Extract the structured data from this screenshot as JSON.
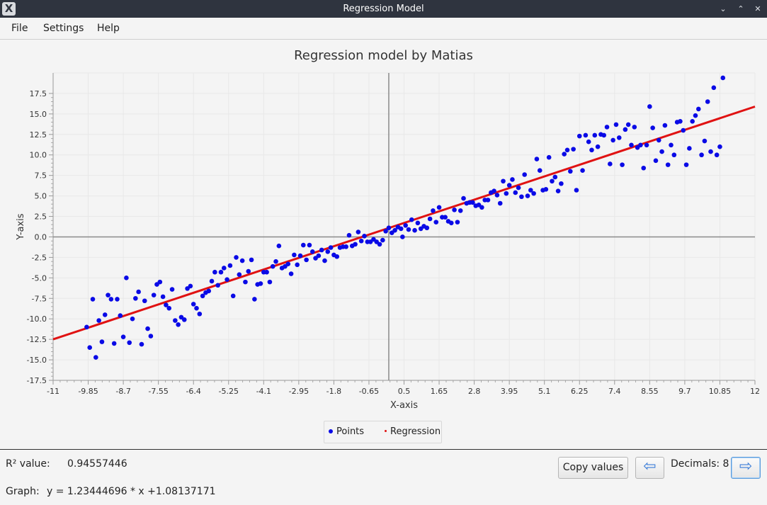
{
  "window": {
    "title": "Regression Model",
    "icon": "x-app-icon",
    "controls": [
      "chevron-down-icon",
      "chevron-up-icon",
      "close-icon"
    ]
  },
  "menu": {
    "items": [
      "File",
      "Settings",
      "Help"
    ]
  },
  "legend": {
    "points": "Points",
    "regression": "Regression"
  },
  "footer": {
    "r2_label": "R² value:",
    "r2_value": "0.94557446",
    "graph_label": "Graph:",
    "graph_equation": "y = 1.23444696 * x +1.08137171",
    "copy_button": "Copy values",
    "decimals_label": "Decimals: 8",
    "prev_icon": "arrow-left-icon",
    "next_icon": "arrow-right-icon"
  },
  "colors": {
    "titlebar": "#2f343f",
    "points": "#0a0ae6",
    "regression": "#e01212",
    "axis": "#8a8a8a",
    "grid": "#e8e8e8"
  },
  "chart_data": {
    "type": "scatter",
    "title": "Regression model by Matias",
    "xlabel": "X-axis",
    "ylabel": "Y-axis",
    "xlim": [
      -11,
      12
    ],
    "ylim": [
      -17.5,
      20
    ],
    "x_ticks": [
      "-11",
      "-9.85",
      "-8.7",
      "-7.55",
      "-6.4",
      "-5.25",
      "-4.1",
      "-2.95",
      "-1.8",
      "-0.65",
      "0.5",
      "1.65",
      "2.8",
      "3.95",
      "5.1",
      "6.25",
      "7.4",
      "8.55",
      "9.7",
      "10.85",
      "12"
    ],
    "y_ticks": [
      "-17.5",
      "-15.0",
      "-12.5",
      "-10.0",
      "-7.5",
      "-5.0",
      "-2.5",
      "0.0",
      "2.5",
      "5.0",
      "7.5",
      "10.0",
      "12.5",
      "15.0",
      "17.5"
    ],
    "grid": true,
    "legend_placement": "bottom-center",
    "series": [
      {
        "name": "Points",
        "points": [
          [
            -9.9,
            -11.0
          ],
          [
            -9.8,
            -13.5
          ],
          [
            -9.7,
            -7.6
          ],
          [
            -9.6,
            -14.7
          ],
          [
            -9.5,
            -10.2
          ],
          [
            -9.4,
            -12.8
          ],
          [
            -9.3,
            -9.5
          ],
          [
            -9.2,
            -7.1
          ],
          [
            -9.1,
            -7.6
          ],
          [
            -9.0,
            -13.0
          ],
          [
            -8.9,
            -7.6
          ],
          [
            -8.8,
            -9.6
          ],
          [
            -8.7,
            -12.2
          ],
          [
            -8.6,
            -5.0
          ],
          [
            -8.5,
            -12.9
          ],
          [
            -8.4,
            -10.0
          ],
          [
            -8.3,
            -7.5
          ],
          [
            -8.2,
            -6.7
          ],
          [
            -8.1,
            -13.1
          ],
          [
            -8.0,
            -7.8
          ],
          [
            -7.9,
            -11.2
          ],
          [
            -7.8,
            -12.1
          ],
          [
            -7.7,
            -7.1
          ],
          [
            -7.6,
            -5.8
          ],
          [
            -7.5,
            -5.5
          ],
          [
            -7.4,
            -7.3
          ],
          [
            -7.3,
            -8.3
          ],
          [
            -7.2,
            -8.7
          ],
          [
            -7.1,
            -6.4
          ],
          [
            -7.0,
            -10.2
          ],
          [
            -6.9,
            -10.7
          ],
          [
            -6.8,
            -9.8
          ],
          [
            -6.7,
            -10.1
          ],
          [
            -6.6,
            -6.3
          ],
          [
            -6.5,
            -6.0
          ],
          [
            -6.4,
            -8.2
          ],
          [
            -6.3,
            -8.7
          ],
          [
            -6.2,
            -9.4
          ],
          [
            -6.1,
            -7.2
          ],
          [
            -6.0,
            -6.8
          ],
          [
            -5.9,
            -6.6
          ],
          [
            -5.8,
            -5.4
          ],
          [
            -5.7,
            -4.3
          ],
          [
            -5.6,
            -5.9
          ],
          [
            -5.5,
            -4.3
          ],
          [
            -5.4,
            -3.8
          ],
          [
            -5.3,
            -5.2
          ],
          [
            -5.2,
            -3.5
          ],
          [
            -5.1,
            -7.2
          ],
          [
            -5.0,
            -2.5
          ],
          [
            -4.9,
            -4.6
          ],
          [
            -4.8,
            -2.9
          ],
          [
            -4.7,
            -5.5
          ],
          [
            -4.6,
            -4.2
          ],
          [
            -4.5,
            -2.8
          ],
          [
            -4.4,
            -7.6
          ],
          [
            -4.3,
            -5.8
          ],
          [
            -4.2,
            -5.7
          ],
          [
            -4.1,
            -4.3
          ],
          [
            -4.0,
            -4.3
          ],
          [
            -3.9,
            -5.5
          ],
          [
            -3.8,
            -3.6
          ],
          [
            -3.7,
            -3.0
          ],
          [
            -3.6,
            -1.1
          ],
          [
            -3.5,
            -3.8
          ],
          [
            -3.4,
            -3.6
          ],
          [
            -3.3,
            -3.3
          ],
          [
            -3.2,
            -4.5
          ],
          [
            -3.1,
            -2.2
          ],
          [
            -3.0,
            -3.4
          ],
          [
            -2.9,
            -2.3
          ],
          [
            -2.8,
            -1.0
          ],
          [
            -2.7,
            -2.8
          ],
          [
            -2.6,
            -1.0
          ],
          [
            -2.5,
            -1.8
          ],
          [
            -2.4,
            -2.6
          ],
          [
            -2.3,
            -2.3
          ],
          [
            -2.2,
            -1.6
          ],
          [
            -2.1,
            -2.9
          ],
          [
            -2.0,
            -1.8
          ],
          [
            -1.9,
            -1.3
          ],
          [
            -1.8,
            -2.2
          ],
          [
            -1.7,
            -2.4
          ],
          [
            -1.6,
            -1.3
          ],
          [
            -1.5,
            -1.2
          ],
          [
            -1.4,
            -1.2
          ],
          [
            -1.3,
            0.2
          ],
          [
            -1.2,
            -1.1
          ],
          [
            -1.1,
            -0.9
          ],
          [
            -1.0,
            0.6
          ],
          [
            -0.9,
            -0.5
          ],
          [
            -0.8,
            0.1
          ],
          [
            -0.7,
            -0.6
          ],
          [
            -0.6,
            -0.6
          ],
          [
            -0.5,
            -0.3
          ],
          [
            -0.4,
            -0.6
          ],
          [
            -0.3,
            -0.9
          ],
          [
            -0.2,
            -0.4
          ],
          [
            -0.1,
            0.7
          ],
          [
            0.0,
            1.1
          ],
          [
            0.1,
            0.5
          ],
          [
            0.2,
            0.8
          ],
          [
            0.3,
            1.2
          ],
          [
            0.4,
            1.0
          ],
          [
            0.45,
            0.0
          ],
          [
            0.55,
            1.4
          ],
          [
            0.65,
            0.9
          ],
          [
            0.75,
            2.1
          ],
          [
            0.85,
            0.8
          ],
          [
            0.95,
            1.7
          ],
          [
            1.05,
            1.0
          ],
          [
            1.15,
            1.3
          ],
          [
            1.25,
            1.1
          ],
          [
            1.35,
            2.2
          ],
          [
            1.45,
            3.2
          ],
          [
            1.55,
            1.8
          ],
          [
            1.65,
            3.6
          ],
          [
            1.75,
            2.4
          ],
          [
            1.85,
            2.4
          ],
          [
            1.95,
            1.9
          ],
          [
            2.05,
            1.7
          ],
          [
            2.15,
            3.3
          ],
          [
            2.25,
            1.8
          ],
          [
            2.35,
            3.2
          ],
          [
            2.45,
            4.7
          ],
          [
            2.55,
            4.1
          ],
          [
            2.65,
            4.2
          ],
          [
            2.75,
            4.2
          ],
          [
            2.85,
            3.8
          ],
          [
            2.95,
            3.9
          ],
          [
            3.05,
            3.6
          ],
          [
            3.15,
            4.5
          ],
          [
            3.25,
            4.5
          ],
          [
            3.35,
            5.4
          ],
          [
            3.45,
            5.6
          ],
          [
            3.55,
            5.1
          ],
          [
            3.65,
            4.1
          ],
          [
            3.75,
            6.8
          ],
          [
            3.85,
            5.3
          ],
          [
            3.95,
            6.3
          ],
          [
            4.05,
            7.0
          ],
          [
            4.15,
            5.4
          ],
          [
            4.25,
            6.0
          ],
          [
            4.35,
            4.9
          ],
          [
            4.45,
            7.6
          ],
          [
            4.55,
            5.0
          ],
          [
            4.65,
            5.7
          ],
          [
            4.75,
            5.3
          ],
          [
            4.85,
            9.5
          ],
          [
            4.95,
            8.1
          ],
          [
            5.05,
            5.7
          ],
          [
            5.15,
            5.8
          ],
          [
            5.25,
            9.7
          ],
          [
            5.35,
            6.8
          ],
          [
            5.45,
            7.3
          ],
          [
            5.55,
            5.6
          ],
          [
            5.65,
            6.5
          ],
          [
            5.75,
            10.1
          ],
          [
            5.85,
            10.6
          ],
          [
            5.95,
            8.0
          ],
          [
            6.05,
            10.7
          ],
          [
            6.15,
            5.7
          ],
          [
            6.25,
            12.3
          ],
          [
            6.35,
            8.1
          ],
          [
            6.45,
            12.4
          ],
          [
            6.55,
            11.6
          ],
          [
            6.65,
            10.6
          ],
          [
            6.75,
            12.4
          ],
          [
            6.85,
            11.0
          ],
          [
            6.95,
            12.5
          ],
          [
            7.05,
            12.4
          ],
          [
            7.15,
            13.4
          ],
          [
            7.25,
            8.9
          ],
          [
            7.35,
            11.8
          ],
          [
            7.45,
            13.7
          ],
          [
            7.55,
            12.1
          ],
          [
            7.65,
            8.8
          ],
          [
            7.75,
            13.1
          ],
          [
            7.85,
            13.7
          ],
          [
            7.95,
            11.2
          ],
          [
            8.05,
            13.4
          ],
          [
            8.15,
            10.9
          ],
          [
            8.25,
            11.2
          ],
          [
            8.35,
            8.4
          ],
          [
            8.45,
            11.2
          ],
          [
            8.55,
            15.9
          ],
          [
            8.65,
            13.3
          ],
          [
            8.75,
            9.3
          ],
          [
            8.85,
            11.8
          ],
          [
            8.95,
            10.4
          ],
          [
            9.05,
            13.6
          ],
          [
            9.15,
            8.8
          ],
          [
            9.25,
            11.2
          ],
          [
            9.35,
            10.0
          ],
          [
            9.45,
            14.0
          ],
          [
            9.55,
            14.1
          ],
          [
            9.65,
            13.0
          ],
          [
            9.75,
            8.8
          ],
          [
            9.85,
            10.8
          ],
          [
            9.95,
            14.1
          ],
          [
            10.05,
            14.8
          ],
          [
            10.15,
            15.6
          ],
          [
            10.25,
            10.0
          ],
          [
            10.35,
            11.7
          ],
          [
            10.45,
            16.5
          ],
          [
            10.55,
            10.4
          ],
          [
            10.65,
            18.2
          ],
          [
            10.75,
            10.0
          ],
          [
            10.85,
            11.0
          ],
          [
            10.95,
            19.4
          ]
        ]
      },
      {
        "name": "Regression",
        "slope": 1.23444696,
        "intercept": 1.08137171,
        "x_range": [
          -11,
          12
        ]
      }
    ]
  }
}
